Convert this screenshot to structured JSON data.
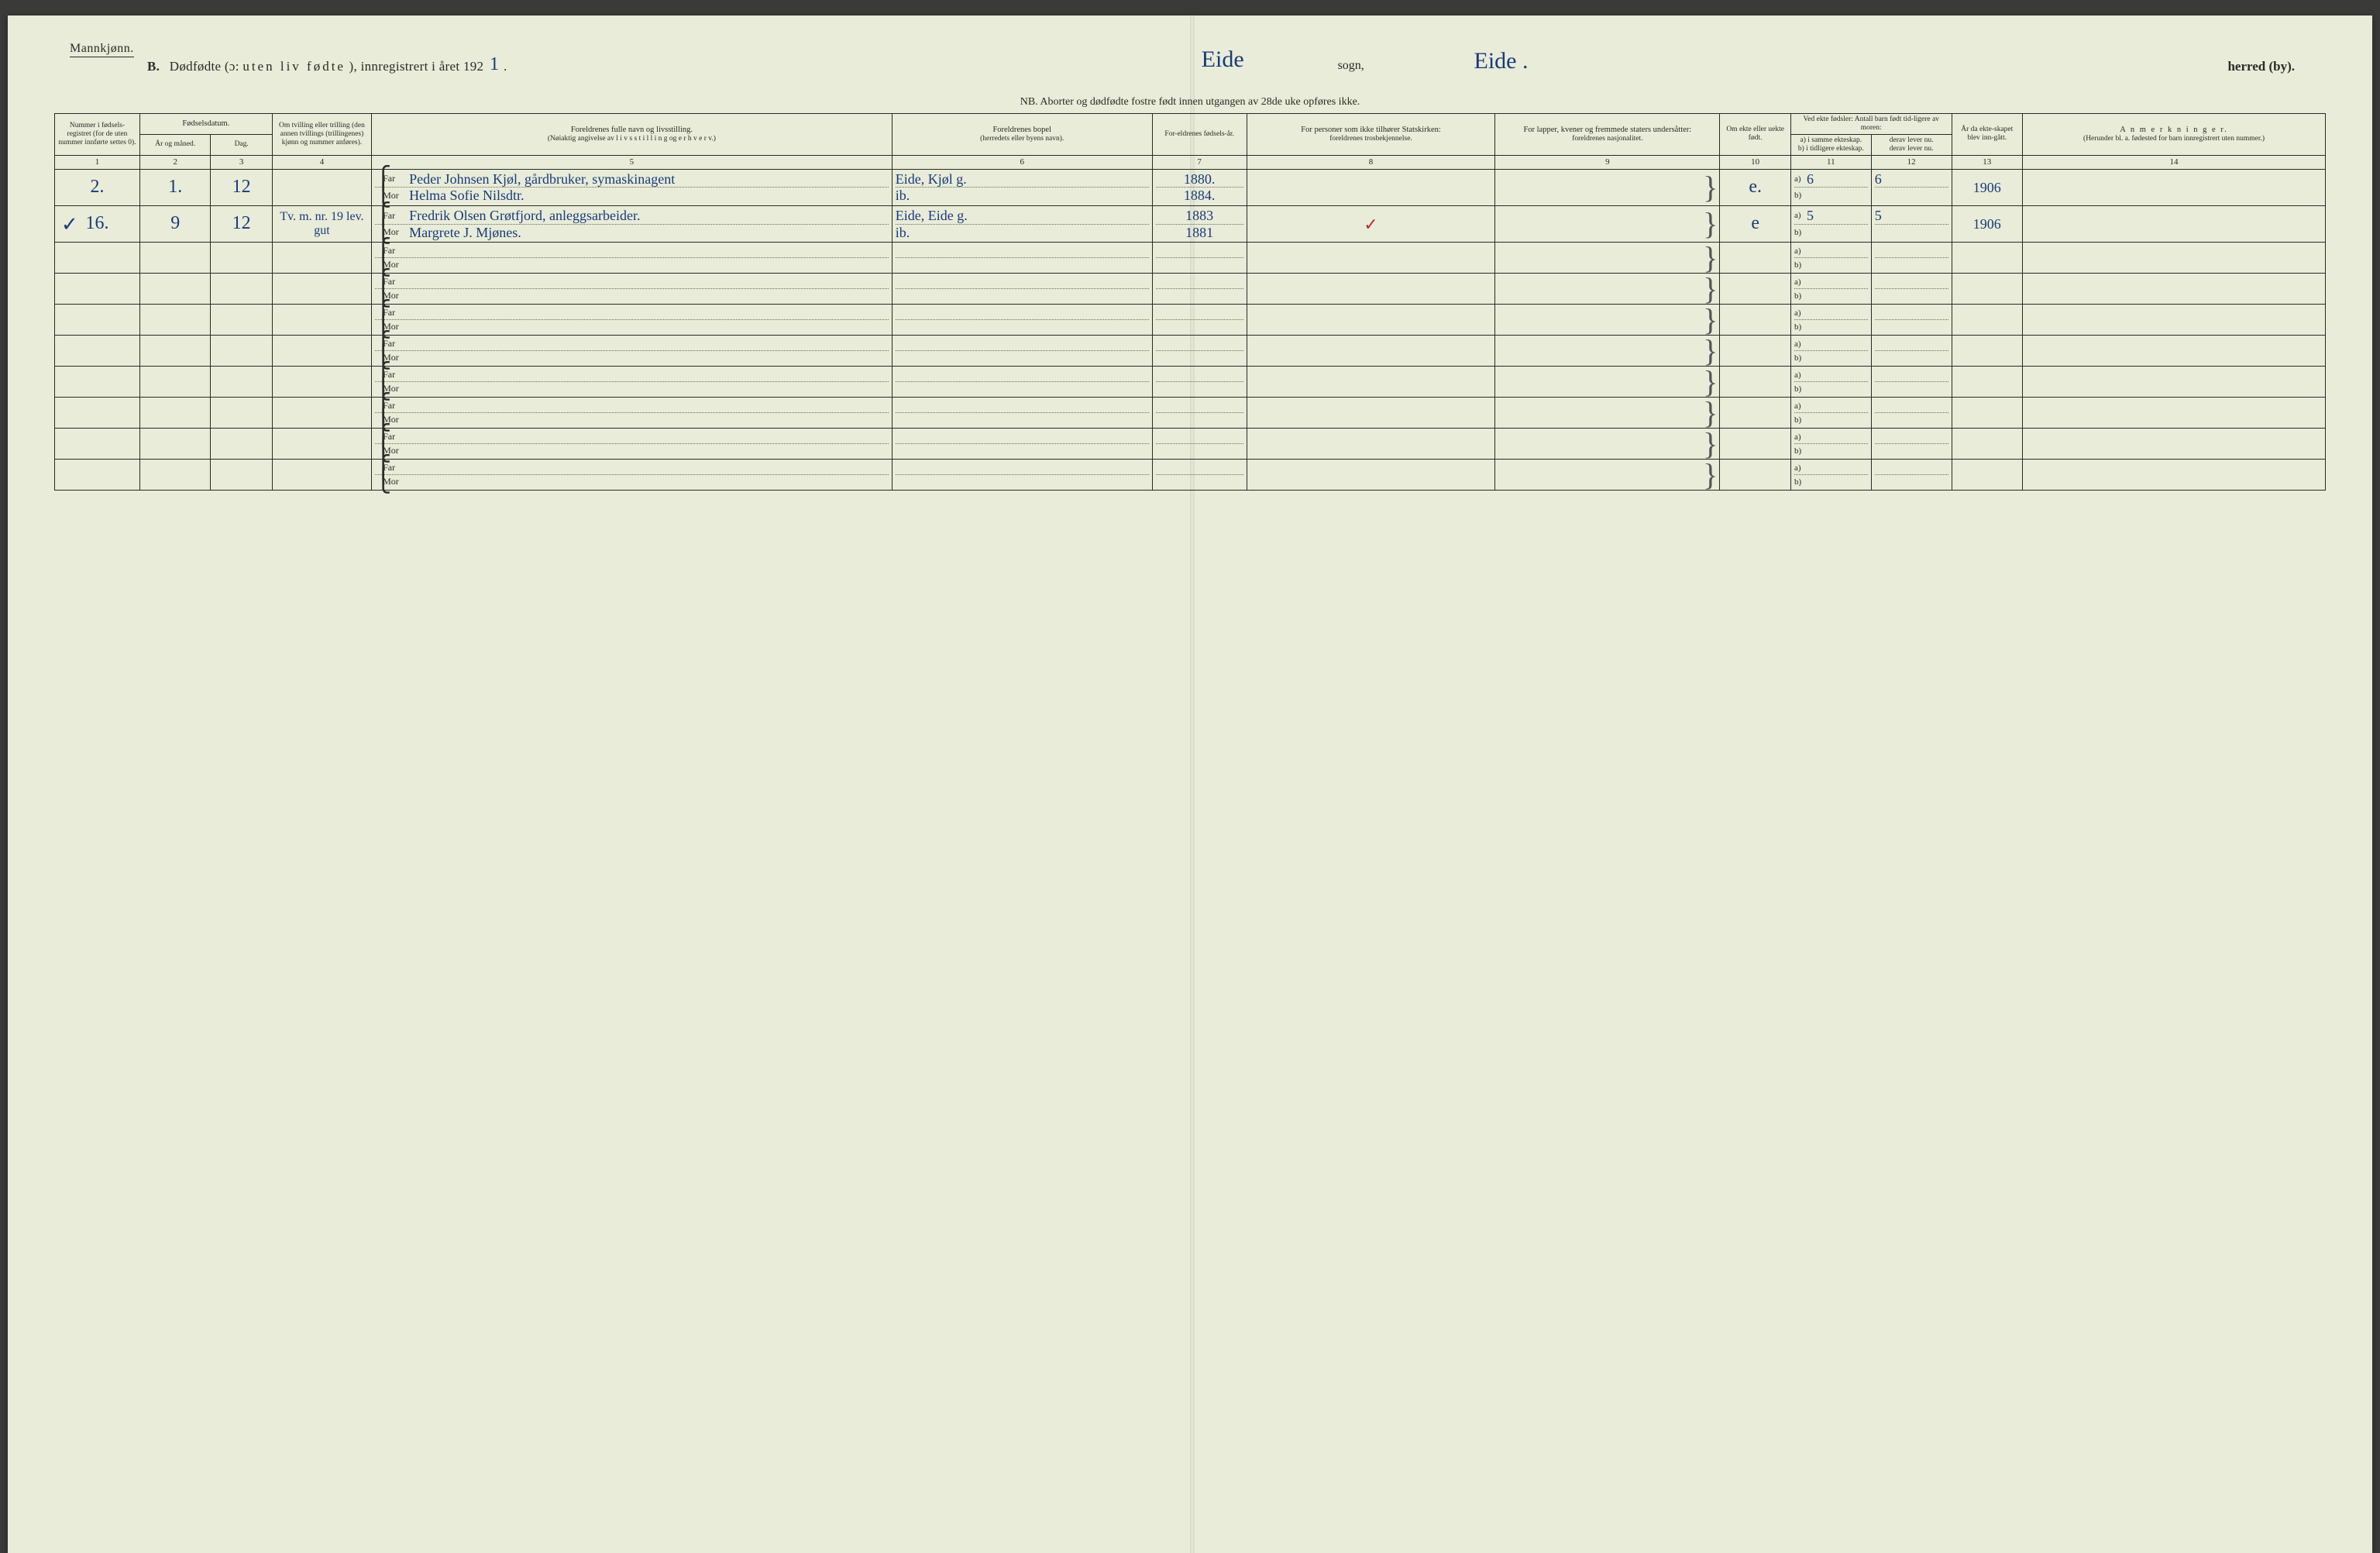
{
  "header": {
    "gender": "Mannkjønn.",
    "title_b": "B.",
    "title_main": "Dødfødte (ɔ:",
    "title_spaced": "uten liv fødte",
    "title_tail": "), innregistrert i året 192",
    "year_hand": "1",
    "period": ".",
    "sogn_hand": "Eide",
    "sogn_label": "sogn,",
    "herred_hand": "Eide .",
    "herred_label": "herred (by).",
    "nb": "NB.  Aborter og dødfødte fostre født innen utgangen av 28de uke opføres ikke."
  },
  "columns": {
    "c1": "Nummer i fødsels-registret (for de uten nummer innførte settes 0).",
    "c2_top": "Fødselsdatum.",
    "c2a": "År og måned.",
    "c2b": "Dag.",
    "c4": "Om tvilling eller trilling (den annen tvillings (trillingenes) kjønn og nummer anføres).",
    "c5a": "Foreldrenes fulle navn og livsstilling.",
    "c5b": "(Nøiaktig angivelse av  l i v s s t i l l i n g  og e r h v e r v.)",
    "c6a": "Foreldrenes bopel",
    "c6b": "(herredets eller byens navn).",
    "c7": "For-eldrenes fødsels-år.",
    "c8a": "For personer som ikke tilhører Statskirken:",
    "c8b": "foreldrenes trosbekjennelse.",
    "c9a": "For lapper, kvener og fremmede staters undersåtter:",
    "c9b": "foreldrenes nasjonalitet.",
    "c10": "Om ekte eller uekte født.",
    "c11_top": "Ved ekte fødsler: Antall barn født tid-ligere av moren:",
    "c11a": "a) i samme ekteskap.",
    "c11b": "b) i tidligere ekteskap.",
    "c12a": "derav lever nu.",
    "c12b": "derav lever nu.",
    "c13": "År da ekte-skapet blev inn-gått.",
    "c14a": "A n m e r k n i n g e r.",
    "c14b": "(Herunder bl. a. fødested for barn innregistrert uten nummer.)",
    "nums": [
      "1",
      "2",
      "3",
      "4",
      "5",
      "6",
      "7",
      "8",
      "9",
      "10",
      "11",
      "12",
      "13",
      "14"
    ]
  },
  "rows": [
    {
      "margin_check": "",
      "num": "2.",
      "aar": "1.",
      "dag": "12",
      "tvilling": "",
      "far": "Peder Johnsen Kjøl,  gårdbruker, symaskinagent",
      "mor": "Helma Sofie Nilsdtr.",
      "bopel_far": "Eide, Kjøl g.",
      "bopel_mor": "ib.",
      "faar_far": "1880.",
      "faar_mor": "1884.",
      "tros": "",
      "nasj": "",
      "ekte": "e.",
      "a11": "6",
      "a12": "6",
      "b11": "",
      "b12": "",
      "aar_ekt": "1906",
      "anm": "",
      "col8_mark": ""
    },
    {
      "margin_check": "✓",
      "num": "16.",
      "aar": "9",
      "dag": "12",
      "tvilling": "Tv. m. nr. 19 lev. gut",
      "far": "Fredrik Olsen Grøtfjord,  anleggsarbeider.",
      "mor": "Margrete J. Mjønes.",
      "bopel_far": "Eide, Eide g.",
      "bopel_mor": "ib.",
      "faar_far": "1883",
      "faar_mor": "1881",
      "tros": "",
      "nasj": "",
      "ekte": "e",
      "a11": "5",
      "a12": "5",
      "b11": "",
      "b12": "",
      "aar_ekt": "1906",
      "anm": "",
      "col8_mark": "✓"
    },
    {
      "margin_check": "",
      "num": "",
      "aar": "",
      "dag": "",
      "tvilling": "",
      "far": "",
      "mor": "",
      "bopel_far": "",
      "bopel_mor": "",
      "faar_far": "",
      "faar_mor": "",
      "tros": "",
      "nasj": "",
      "ekte": "",
      "a11": "",
      "a12": "",
      "b11": "",
      "b12": "",
      "aar_ekt": "",
      "anm": "",
      "col8_mark": ""
    },
    {
      "margin_check": "",
      "num": "",
      "aar": "",
      "dag": "",
      "tvilling": "",
      "far": "",
      "mor": "",
      "bopel_far": "",
      "bopel_mor": "",
      "faar_far": "",
      "faar_mor": "",
      "tros": "",
      "nasj": "",
      "ekte": "",
      "a11": "",
      "a12": "",
      "b11": "",
      "b12": "",
      "aar_ekt": "",
      "anm": "",
      "col8_mark": ""
    },
    {
      "margin_check": "",
      "num": "",
      "aar": "",
      "dag": "",
      "tvilling": "",
      "far": "",
      "mor": "",
      "bopel_far": "",
      "bopel_mor": "",
      "faar_far": "",
      "faar_mor": "",
      "tros": "",
      "nasj": "",
      "ekte": "",
      "a11": "",
      "a12": "",
      "b11": "",
      "b12": "",
      "aar_ekt": "",
      "anm": "",
      "col8_mark": ""
    },
    {
      "margin_check": "",
      "num": "",
      "aar": "",
      "dag": "",
      "tvilling": "",
      "far": "",
      "mor": "",
      "bopel_far": "",
      "bopel_mor": "",
      "faar_far": "",
      "faar_mor": "",
      "tros": "",
      "nasj": "",
      "ekte": "",
      "a11": "",
      "a12": "",
      "b11": "",
      "b12": "",
      "aar_ekt": "",
      "anm": "",
      "col8_mark": ""
    },
    {
      "margin_check": "",
      "num": "",
      "aar": "",
      "dag": "",
      "tvilling": "",
      "far": "",
      "mor": "",
      "bopel_far": "",
      "bopel_mor": "",
      "faar_far": "",
      "faar_mor": "",
      "tros": "",
      "nasj": "",
      "ekte": "",
      "a11": "",
      "a12": "",
      "b11": "",
      "b12": "",
      "aar_ekt": "",
      "anm": "",
      "col8_mark": ""
    },
    {
      "margin_check": "",
      "num": "",
      "aar": "",
      "dag": "",
      "tvilling": "",
      "far": "",
      "mor": "",
      "bopel_far": "",
      "bopel_mor": "",
      "faar_far": "",
      "faar_mor": "",
      "tros": "",
      "nasj": "",
      "ekte": "",
      "a11": "",
      "a12": "",
      "b11": "",
      "b12": "",
      "aar_ekt": "",
      "anm": "",
      "col8_mark": ""
    },
    {
      "margin_check": "",
      "num": "",
      "aar": "",
      "dag": "",
      "tvilling": "",
      "far": "",
      "mor": "",
      "bopel_far": "",
      "bopel_mor": "",
      "faar_far": "",
      "faar_mor": "",
      "tros": "",
      "nasj": "",
      "ekte": "",
      "a11": "",
      "a12": "",
      "b11": "",
      "b12": "",
      "aar_ekt": "",
      "anm": "",
      "col8_mark": ""
    },
    {
      "margin_check": "",
      "num": "",
      "aar": "",
      "dag": "",
      "tvilling": "",
      "far": "",
      "mor": "",
      "bopel_far": "",
      "bopel_mor": "",
      "faar_far": "",
      "faar_mor": "",
      "tros": "",
      "nasj": "",
      "ekte": "",
      "a11": "",
      "a12": "",
      "b11": "",
      "b12": "",
      "aar_ekt": "",
      "anm": "",
      "col8_mark": ""
    }
  ],
  "labels": {
    "far": "Far",
    "mor": "Mor",
    "a": "a)",
    "b": "b)"
  }
}
